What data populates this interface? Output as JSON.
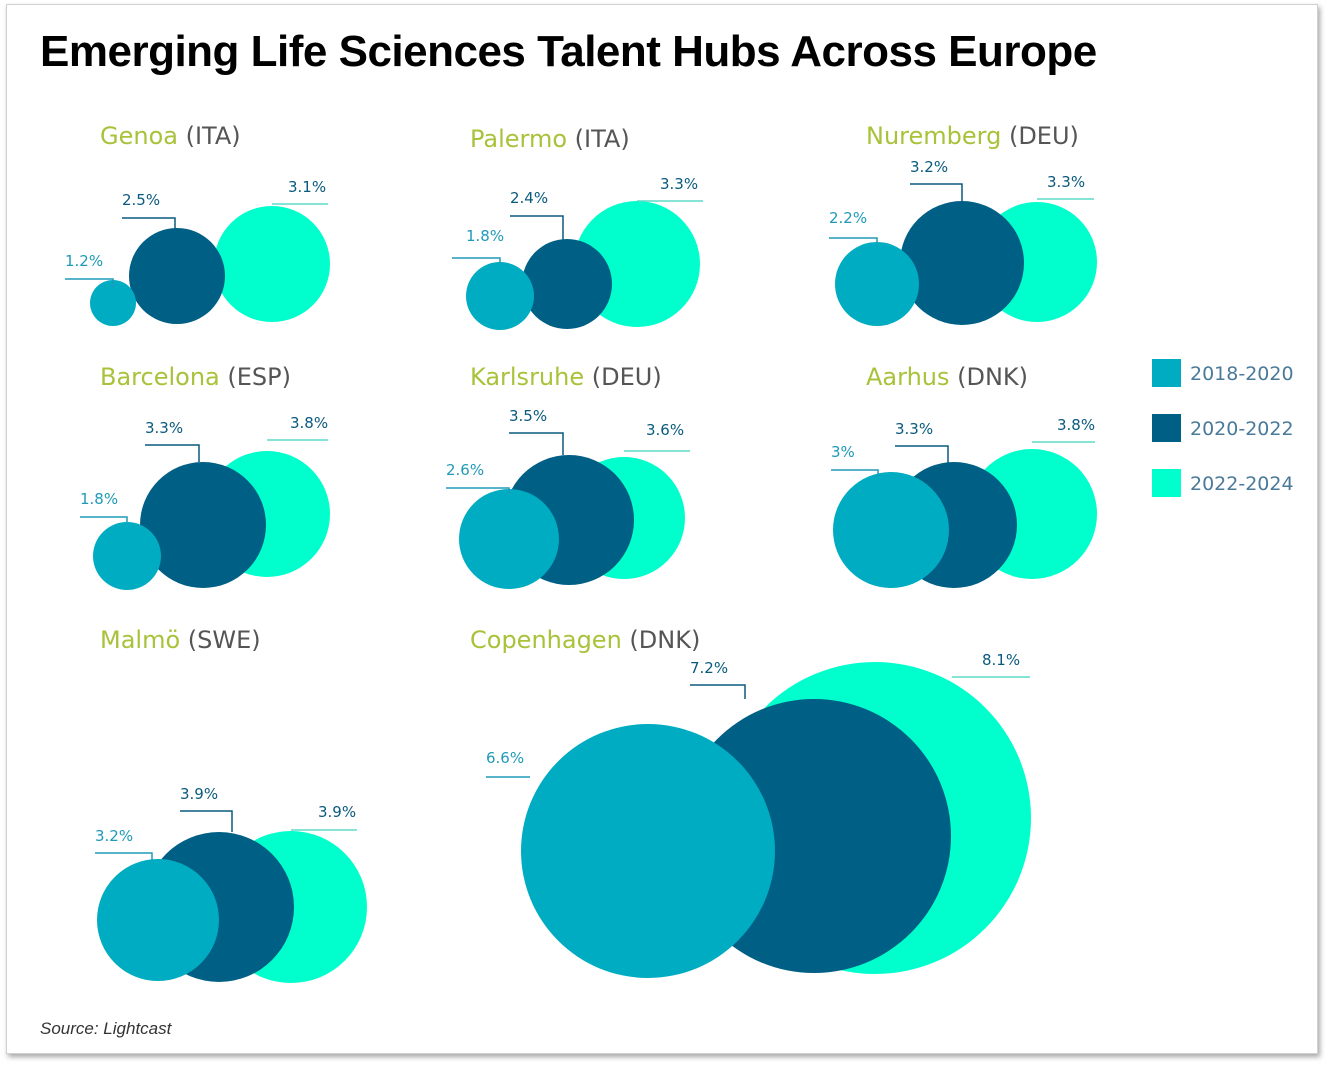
{
  "title": "Emerging Life Sciences Talent Hubs Across Europe",
  "source": "Source: Lightcast",
  "chart_data": {
    "type": "bubble",
    "legend_position": "right",
    "series": [
      {
        "name": "2018-2020",
        "color": "#00acc1"
      },
      {
        "name": "2020-2022",
        "color": "#005f84"
      },
      {
        "name": "2022-2024",
        "color": "#00ffcc"
      }
    ],
    "cities": [
      {
        "name": "Genoa",
        "country": "(ITA)",
        "values": [
          1.2,
          2.5,
          3.1
        ],
        "labels": [
          "1.2%",
          "2.5%",
          "3.1%"
        ]
      },
      {
        "name": "Palermo",
        "country": "(ITA)",
        "values": [
          1.8,
          2.4,
          3.3
        ],
        "labels": [
          "1.8%",
          "2.4%",
          "3.3%"
        ]
      },
      {
        "name": "Nuremberg",
        "country": "(DEU)",
        "values": [
          2.2,
          3.2,
          3.3
        ],
        "labels": [
          "2.2%",
          "3.2%",
          "3.3%"
        ]
      },
      {
        "name": "Barcelona",
        "country": "(ESP)",
        "values": [
          1.8,
          3.3,
          3.8
        ],
        "labels": [
          "1.8%",
          "3.3%",
          "3.8%"
        ]
      },
      {
        "name": "Karlsruhe",
        "country": "(DEU)",
        "values": [
          2.6,
          3.5,
          3.6
        ],
        "labels": [
          "2.6%",
          "3.5%",
          "3.6%"
        ]
      },
      {
        "name": "Aarhus",
        "country": "(DNK)",
        "values": [
          3,
          3.3,
          3.8
        ],
        "labels": [
          "3%",
          "3.3%",
          "3.8%"
        ]
      },
      {
        "name": "Malmö",
        "country": "(SWE)",
        "values": [
          3.2,
          3.9,
          3.9
        ],
        "labels": [
          "3.2%",
          "3.9%",
          "3.9%"
        ]
      },
      {
        "name": "Copenhagen",
        "country": "(DNK)",
        "values": [
          6.6,
          7.2,
          8.1
        ],
        "labels": [
          "6.6%",
          "7.2%",
          "8.1%"
        ]
      }
    ]
  },
  "colors": {
    "city_name": "#a8c23a",
    "country": "#555555",
    "label_light": "#1f9ab8",
    "label_dark": "#0a5a7e",
    "leader_cyan": "#5fdcc8"
  }
}
